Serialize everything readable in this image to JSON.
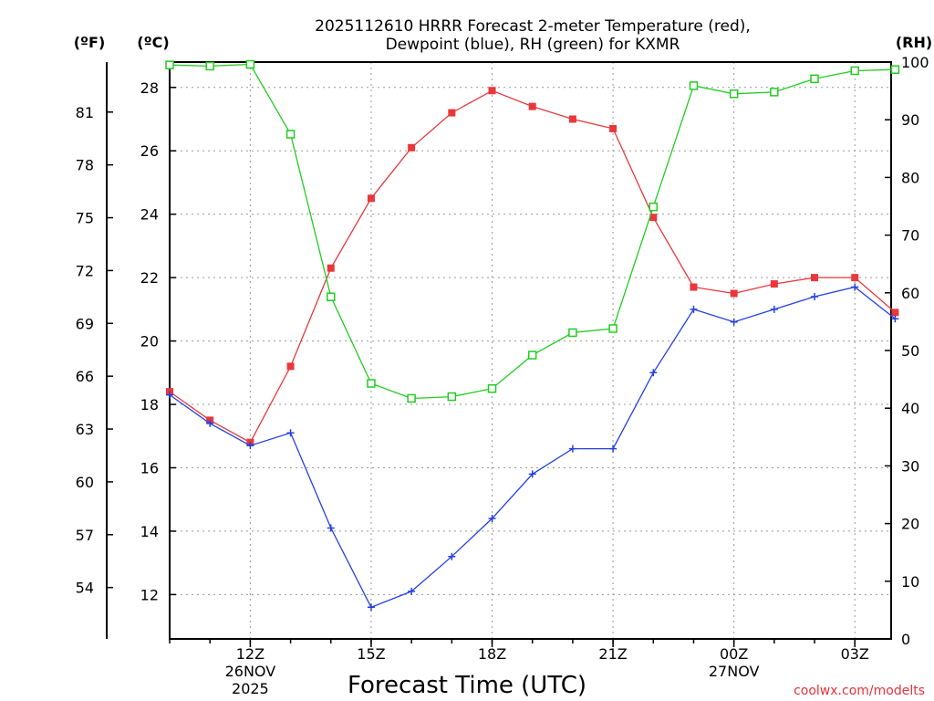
{
  "chart_data": {
    "type": "line",
    "title": "2025112610 HRRR Forecast 2-meter Temperature (red), Dewpoint (blue), RH (green) for KXMR",
    "title_lines": [
      "2025112610 HRRR Forecast 2-meter Temperature (red),",
      "Dewpoint (blue), RH (green) for KXMR"
    ],
    "xlabel": "Forecast Time (UTC)",
    "unit_labels": {
      "fahrenheit": "(ºF)",
      "celsius": "(ºC)",
      "rh": "(RH)"
    },
    "credit": "coolwx.com/modelts",
    "x": [
      10,
      11,
      12,
      13,
      14,
      15,
      16,
      17,
      18,
      19,
      20,
      21,
      22,
      23,
      24,
      25,
      26,
      27,
      28
    ],
    "xlim": [
      10,
      27.9
    ],
    "x_ticks": [
      {
        "hour": 12,
        "label": "12Z",
        "date": "26NOV",
        "year": "2025"
      },
      {
        "hour": 15,
        "label": "15Z"
      },
      {
        "hour": 18,
        "label": "18Z"
      },
      {
        "hour": 21,
        "label": "21Z"
      },
      {
        "hour": 24,
        "label": "00Z",
        "date": "27NOV"
      },
      {
        "hour": 27,
        "label": "03Z"
      }
    ],
    "y_celsius": {
      "lim": [
        10.6,
        28.8
      ],
      "ticks": [
        12,
        14,
        16,
        18,
        20,
        22,
        24,
        26,
        28
      ]
    },
    "y_fahrenheit": {
      "ticks": [
        54,
        57,
        60,
        63,
        66,
        69,
        72,
        75,
        78,
        81
      ]
    },
    "y_rh": {
      "lim": [
        0,
        100
      ],
      "ticks": [
        0,
        10,
        20,
        30,
        40,
        50,
        60,
        70,
        80,
        90,
        100
      ]
    },
    "grid": true,
    "series": [
      {
        "name": "Temperature",
        "unit": "C",
        "color": "#e8383c",
        "marker": "filled-square",
        "values": [
          18.4,
          17.5,
          16.8,
          19.2,
          22.3,
          24.5,
          26.1,
          27.2,
          27.9,
          27.4,
          27.0,
          26.7,
          23.9,
          21.7,
          21.5,
          21.8,
          22.0,
          22.0,
          20.9
        ]
      },
      {
        "name": "Dewpoint",
        "unit": "C",
        "color": "#2440e0",
        "marker": "plus",
        "values": [
          18.3,
          17.4,
          16.7,
          17.1,
          14.1,
          11.6,
          12.1,
          13.2,
          14.4,
          15.8,
          16.6,
          16.6,
          19.0,
          21.0,
          20.6,
          21.0,
          21.4,
          21.7,
          20.7
        ]
      },
      {
        "name": "RH",
        "unit": "%",
        "color": "#22cc22",
        "marker": "open-square",
        "values": [
          99.5,
          99.3,
          99.6,
          87.5,
          59.3,
          44.3,
          41.7,
          42.0,
          43.4,
          49.2,
          53.1,
          53.8,
          74.9,
          95.9,
          94.5,
          94.8,
          97.1,
          98.5,
          98.7
        ]
      }
    ]
  }
}
